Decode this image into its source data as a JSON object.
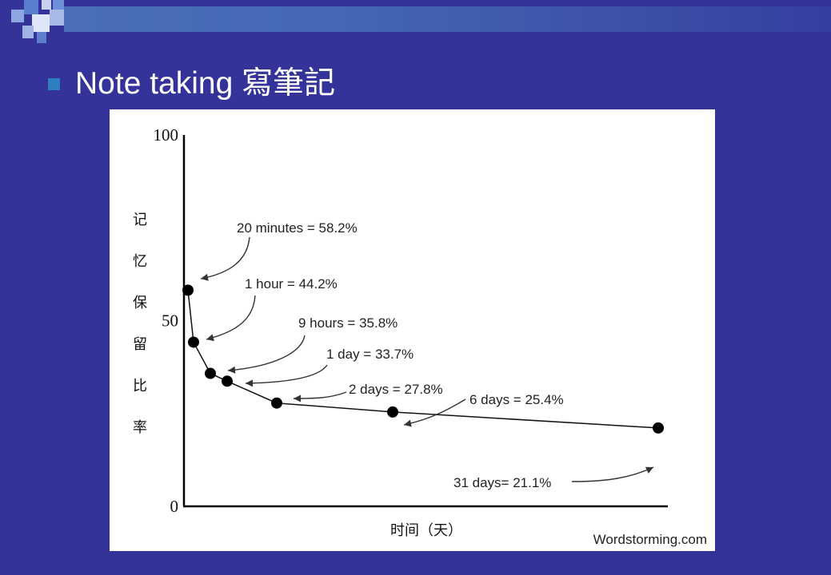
{
  "slide": {
    "title": "Note taking 寫筆記",
    "colors": {
      "background": "#333399",
      "bullet": "#2e7fc0",
      "title": "#ffffff"
    }
  },
  "chart_data": {
    "type": "line",
    "ylabel": "记忆保留比率",
    "xlabel": "时间（天）",
    "ylim": [
      0,
      100
    ],
    "yticks": [
      "100",
      "50",
      "0"
    ],
    "grid": false,
    "x_scale": "time since learning (not linear)",
    "series": [
      {
        "points": [
          {
            "label": "20 minutes = 58.2%",
            "y": 58.2
          },
          {
            "label": "1 hour = 44.2%",
            "y": 44.2
          },
          {
            "label": "9 hours = 35.8%",
            "y": 35.8
          },
          {
            "label": "1 day = 33.7%",
            "y": 33.7
          },
          {
            "label": "2 days = 27.8%",
            "y": 27.8
          },
          {
            "label": "6 days = 25.4%",
            "y": 25.4
          },
          {
            "label": "31 days= 21.1%",
            "y": 21.1
          }
        ]
      }
    ],
    "watermark": "Wordstorming.com"
  }
}
